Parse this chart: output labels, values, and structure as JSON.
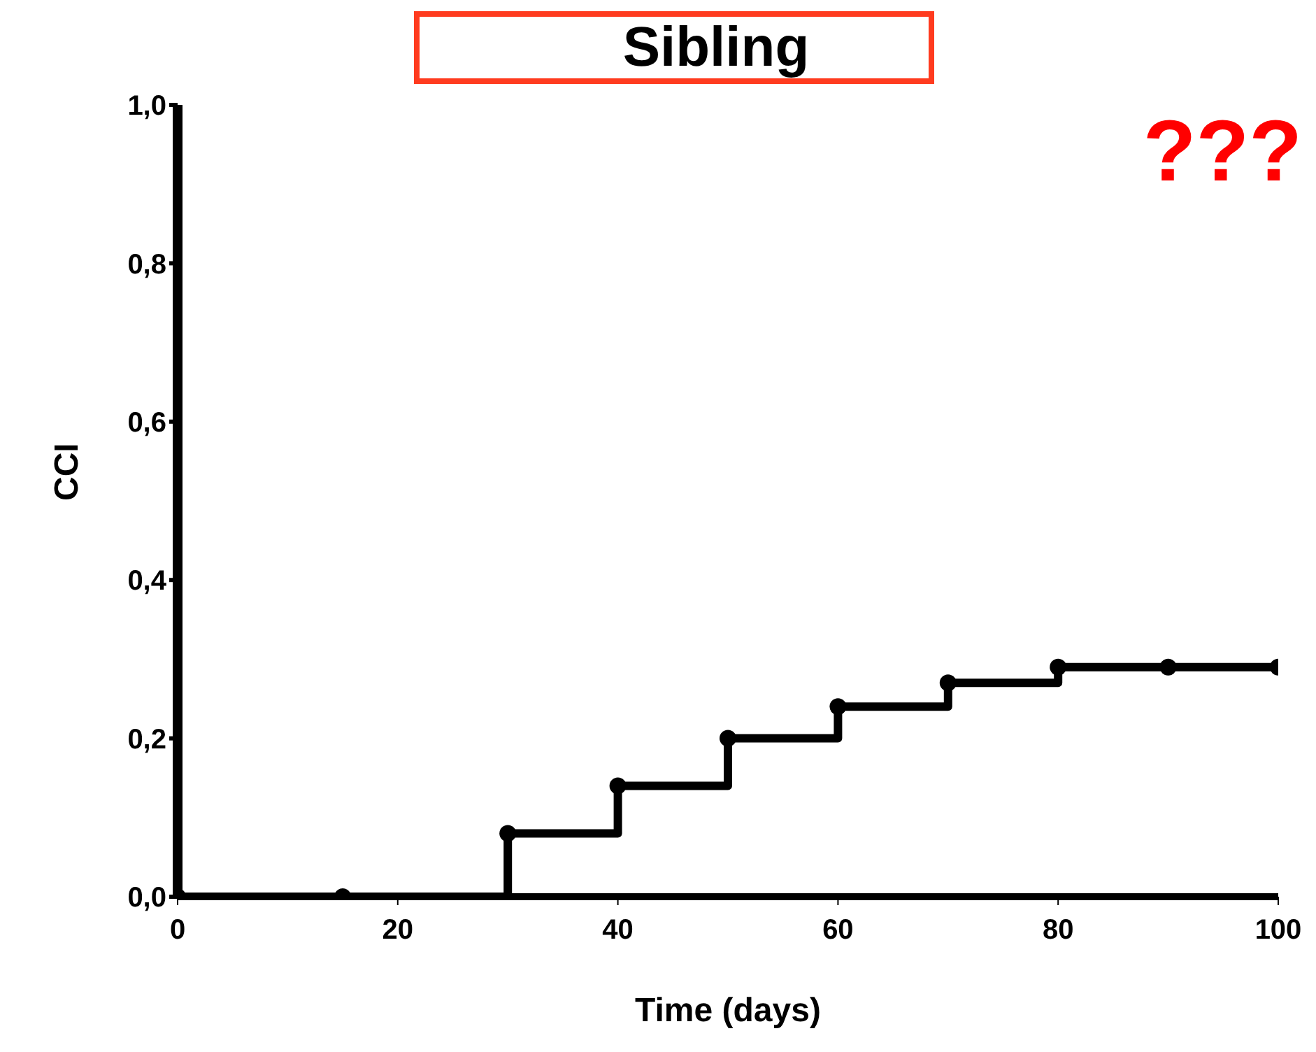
{
  "chart_data": {
    "type": "step",
    "title": "Sibling",
    "xlabel": "Time (days)",
    "ylabel": "CCI",
    "annotations": [
      "???"
    ],
    "x": [
      0,
      15,
      30,
      40,
      50,
      60,
      70,
      80,
      90,
      100
    ],
    "series": [
      {
        "color": "#000000",
        "values": [
          0,
          0,
          0.08,
          0.14,
          0.2,
          0.24,
          0.27,
          0.29,
          0.29,
          0.29
        ]
      }
    ],
    "xlim": [
      0,
      100
    ],
    "xticks": [
      0,
      20,
      40,
      60,
      80,
      100
    ],
    "ylim": [
      0,
      1
    ],
    "yticks": [
      {
        "value": 0,
        "label": "0,0"
      },
      {
        "value": 0.2,
        "label": "0,2"
      },
      {
        "value": 0.4,
        "label": "0,4"
      },
      {
        "value": 0.6,
        "label": "0,6"
      },
      {
        "value": 0.8,
        "label": "0,8"
      },
      {
        "value": 1,
        "label": "1,0"
      }
    ],
    "grid": false,
    "legend": false,
    "marker": "circle",
    "line_style": "solid"
  }
}
